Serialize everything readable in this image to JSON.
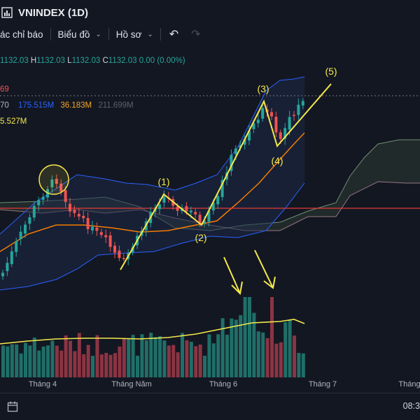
{
  "titlebar": {
    "title": "VNINDEX (1D)"
  },
  "toolbar": {
    "indicators_label": "ác chỉ báo",
    "chart_label": "Biểu đồ",
    "profile_label": "Hồ sơ"
  },
  "ohlc": {
    "o_value": "1132.03",
    "h_label": "H",
    "h_value": "1132.03",
    "l_label": "L",
    "l_value": "1132.03",
    "c_label": "C",
    "c_value": "1132.03",
    "change": "0.00 (0.00%)"
  },
  "indicators": {
    "row1": "69",
    "row2_a": "70",
    "row2_b": "175.515M",
    "row2_c": "36.183M",
    "row2_d": "211.699M",
    "row3": "5.527M"
  },
  "annotations": {
    "w1": "(1)",
    "w2": "(2)",
    "w3": "(3)",
    "w4": "(4)",
    "w5": "(5)"
  },
  "x_axis": {
    "labels": [
      "Tháng 4",
      "Tháng Năm",
      "Tháng 6",
      "Tháng 7",
      "Tháng"
    ]
  },
  "statusbar": {
    "time": "08:3"
  },
  "colors": {
    "up": "#26a69a",
    "down": "#ef5350",
    "wave": "#f5e94a",
    "bb": "#2962ff",
    "ma": "#f57c00",
    "hline": "#e53935"
  },
  "icons": {
    "title_icon": "chart-icon",
    "undo": "undo-icon",
    "redo": "redo-icon",
    "settings": "settings-time-icon"
  }
}
